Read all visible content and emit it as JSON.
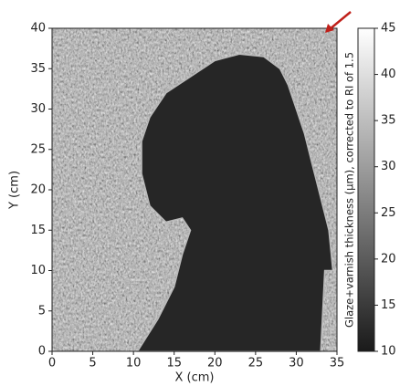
{
  "chart_data": {
    "type": "heatmap",
    "xlabel": "X (cm)",
    "ylabel": "Y (cm)",
    "colorbar_label": "Glaze+varnish thickness (μm), corrected to RI of 1.5",
    "xlim": [
      0,
      35
    ],
    "xticks": [
      0,
      5,
      10,
      15,
      20,
      25,
      30,
      35
    ],
    "ylim": [
      0,
      40
    ],
    "yticks": [
      0,
      5,
      10,
      15,
      20,
      25,
      30,
      35,
      40
    ],
    "clim": [
      10,
      45
    ],
    "cticks": [
      10,
      15,
      20,
      25,
      30,
      35,
      40,
      45
    ],
    "colormap": [
      "#1a1a1a",
      "#ffffff"
    ]
  }
}
